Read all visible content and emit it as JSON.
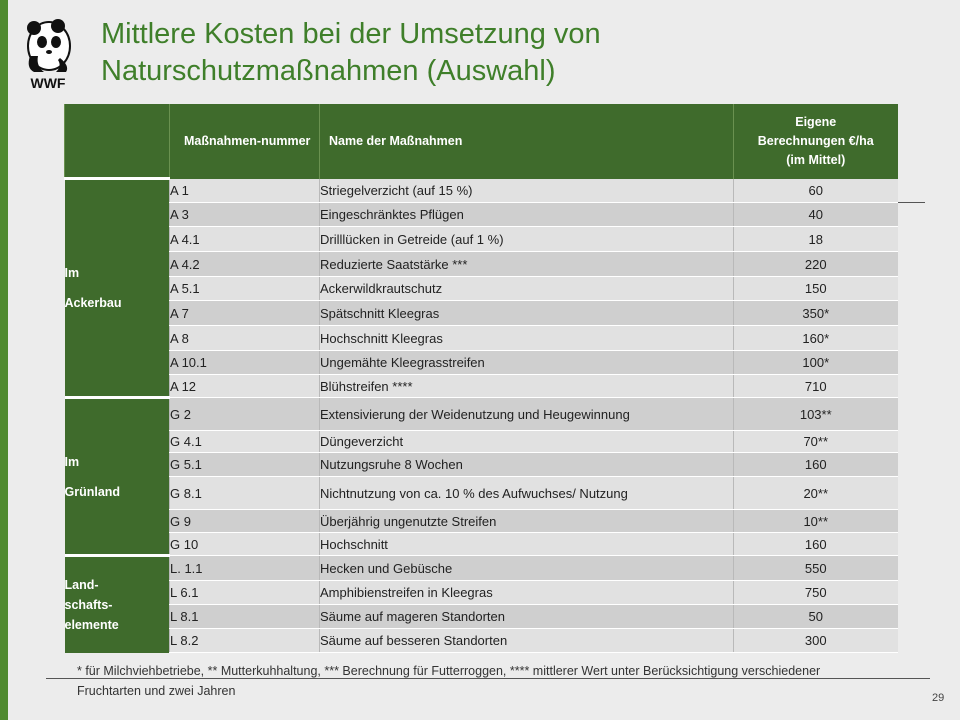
{
  "slide": {
    "title": "Mittlere Kosten bei der Umsetzung von Naturschutzmaßnahmen (Auswahl)",
    "logo_text": "WWF",
    "page_number": "29",
    "footnote": "* für Milchviehbetriebe, ** Mutterkuhhaltung, *** Berechnung für Futterroggen, **** mittlerer Wert unter Berücksichtigung verschiedener Fruchtarten und zwei Jahren"
  },
  "table": {
    "headers": {
      "group": "",
      "number": "Maßnahmen-nummer",
      "name": "Name der Maßnahmen",
      "cost": "Eigene Berechnungen €/ha (im Mittel)"
    },
    "groups": [
      {
        "label_line1": "Im",
        "label_line2": "Ackerbau",
        "rows": [
          {
            "number": "A 1",
            "name": "Striegelverzicht (auf 15 %)",
            "cost": "60"
          },
          {
            "number": "A 3",
            "name": "Eingeschränktes Pflügen",
            "cost": "40"
          },
          {
            "number": "A 4.1",
            "name": "Drilllücken in Getreide (auf 1 %)",
            "cost": "18"
          },
          {
            "number": "A 4.2",
            "name": "Reduzierte Saatstärke ***",
            "cost": "220"
          },
          {
            "number": "A 5.1",
            "name": "Ackerwildkrautschutz",
            "cost": "150"
          },
          {
            "number": "A 7",
            "name": "Spätschnitt Kleegras",
            "cost": "350*"
          },
          {
            "number": "A 8",
            "name": "Hochschnitt Kleegras",
            "cost": "160*"
          },
          {
            "number": "A 10.1",
            "name": "Ungemähte Kleegrasstreifen",
            "cost": "100*"
          },
          {
            "number": "A 12",
            "name": "Blühstreifen ****",
            "cost": "710"
          }
        ]
      },
      {
        "label_line1": "Im",
        "label_line2": "Grünland",
        "rows": [
          {
            "number": "G 2",
            "name": "Extensivierung der Weidenutzung und Heugewinnung",
            "cost": "103**"
          },
          {
            "number": "G 4.1",
            "name": "Düngeverzicht",
            "cost": "70**"
          },
          {
            "number": "G 5.1",
            "name": "Nutzungsruhe 8 Wochen",
            "cost": "160"
          },
          {
            "number": "G 8.1",
            "name": "Nichtnutzung von ca. 10 % des Aufwuchses/ Nutzung",
            "cost": "20**"
          },
          {
            "number": "G 9",
            "name": "Überjährig ungenutzte Streifen",
            "cost": "10**"
          },
          {
            "number": "G 10",
            "name": "Hochschnitt",
            "cost": "160"
          }
        ]
      },
      {
        "label_line1": "Land-",
        "label_line2": "schafts-",
        "label_line3": "elemente",
        "rows": [
          {
            "number": "L. 1.1",
            "name": "Hecken und Gebüsche",
            "cost": "550"
          },
          {
            "number": "L 6.1",
            "name": "Amphibienstreifen in Kleegras",
            "cost": "750"
          },
          {
            "number": "L 8.1",
            "name": "Säume auf mageren Standorten",
            "cost": "50"
          },
          {
            "number": "L 8.2",
            "name": "Säume auf besseren Standorten",
            "cost": "300"
          }
        ]
      }
    ]
  }
}
